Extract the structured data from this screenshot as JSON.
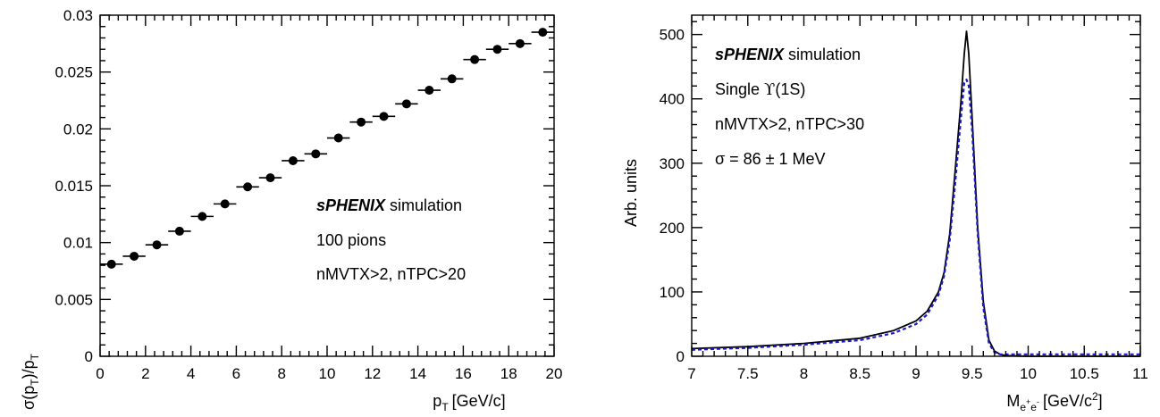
{
  "chart_data": [
    {
      "type": "scatter",
      "xlabel": "p",
      "xlabel_sub": "T",
      "xlabel_unit": "[GeV/c]",
      "ylabel": "σ(p",
      "ylabel_sub1": "T",
      "ylabel_mid": ")/p",
      "ylabel_sub2": "T",
      "xlim": [
        0,
        20
      ],
      "ylim": [
        0,
        0.03
      ],
      "xticks": [
        0,
        2,
        4,
        6,
        8,
        10,
        12,
        14,
        16,
        18,
        20
      ],
      "yticks": [
        0,
        0.005,
        0.01,
        0.015,
        0.02,
        0.025,
        0.03
      ],
      "ytick_labels": [
        "0",
        "0.005",
        "0.01",
        "0.015",
        "0.02",
        "0.025",
        "0.03"
      ],
      "x": [
        0.5,
        1.5,
        2.5,
        3.5,
        4.5,
        5.5,
        6.5,
        7.5,
        8.5,
        9.5,
        10.5,
        11.5,
        12.5,
        13.5,
        14.5,
        15.5,
        16.5,
        17.5,
        18.5,
        19.5
      ],
      "y": [
        0.0081,
        0.0088,
        0.0098,
        0.011,
        0.0123,
        0.0134,
        0.0149,
        0.0157,
        0.0172,
        0.0178,
        0.0192,
        0.0206,
        0.0211,
        0.0222,
        0.0234,
        0.0244,
        0.0261,
        0.027,
        0.0275,
        0.0285
      ],
      "x_error": 0.5,
      "annotations": {
        "brand": "sPHENIX",
        "brand_rest": " simulation",
        "line2": "100 pions",
        "line3": "nMVTX>2, nTPC>20"
      }
    },
    {
      "type": "line",
      "xlabel": "M",
      "xlabel_sub": "e",
      "xlabel_sup1": "+",
      "xlabel_sub2": "e",
      "xlabel_sup2": "-",
      "xlabel_unit": "[GeV/c",
      "xlabel_unit_sup": "2",
      "xlabel_unit_end": "]",
      "ylabel": "Arb. units",
      "xlim": [
        7,
        11
      ],
      "ylim": [
        0,
        530
      ],
      "xticks": [
        7,
        7.5,
        8,
        8.5,
        9,
        9.5,
        10,
        10.5,
        11
      ],
      "xtick_labels": [
        "7",
        "7.5",
        "8",
        "8.5",
        "9",
        "9.5",
        "10",
        "10.5",
        "11"
      ],
      "yticks": [
        0,
        100,
        200,
        300,
        400,
        500
      ],
      "series": [
        {
          "x": [
            7.0,
            7.5,
            8.0,
            8.5,
            8.8,
            9.0,
            9.1,
            9.2,
            9.25,
            9.3,
            9.35,
            9.4,
            9.43,
            9.45,
            9.47,
            9.5,
            9.55,
            9.6,
            9.65,
            9.7,
            9.75,
            9.8,
            10.0,
            11.0
          ],
          "y": [
            12,
            15,
            20,
            28,
            40,
            55,
            70,
            100,
            130,
            190,
            290,
            395,
            470,
            505,
            470,
            370,
            200,
            85,
            25,
            8,
            3,
            1,
            0,
            0
          ],
          "color": "#000000"
        },
        {
          "x": [
            7.0,
            7.5,
            8.0,
            8.5,
            8.8,
            9.0,
            9.1,
            9.2,
            9.25,
            9.3,
            9.35,
            9.4,
            9.43,
            9.45,
            9.47,
            9.5,
            9.55,
            9.6,
            9.65,
            9.7,
            9.75,
            9.8,
            10.0,
            10.5,
            11.0
          ],
          "y": [
            10,
            13,
            18,
            25,
            36,
            50,
            65,
            95,
            125,
            180,
            270,
            370,
            425,
            430,
            420,
            350,
            190,
            75,
            20,
            6,
            3,
            3,
            3,
            3,
            3
          ],
          "color": "#1a1acc",
          "dashed": true
        }
      ],
      "annotations": {
        "brand": "sPHENIX",
        "brand_rest": " simulation",
        "line2_pre": "Single ",
        "line2_sym": "ϒ",
        "line2_post": "(1S)",
        "line3": "nMVTX>2, nTPC>30",
        "line4": "σ = 86 ± 1 MeV"
      }
    }
  ]
}
